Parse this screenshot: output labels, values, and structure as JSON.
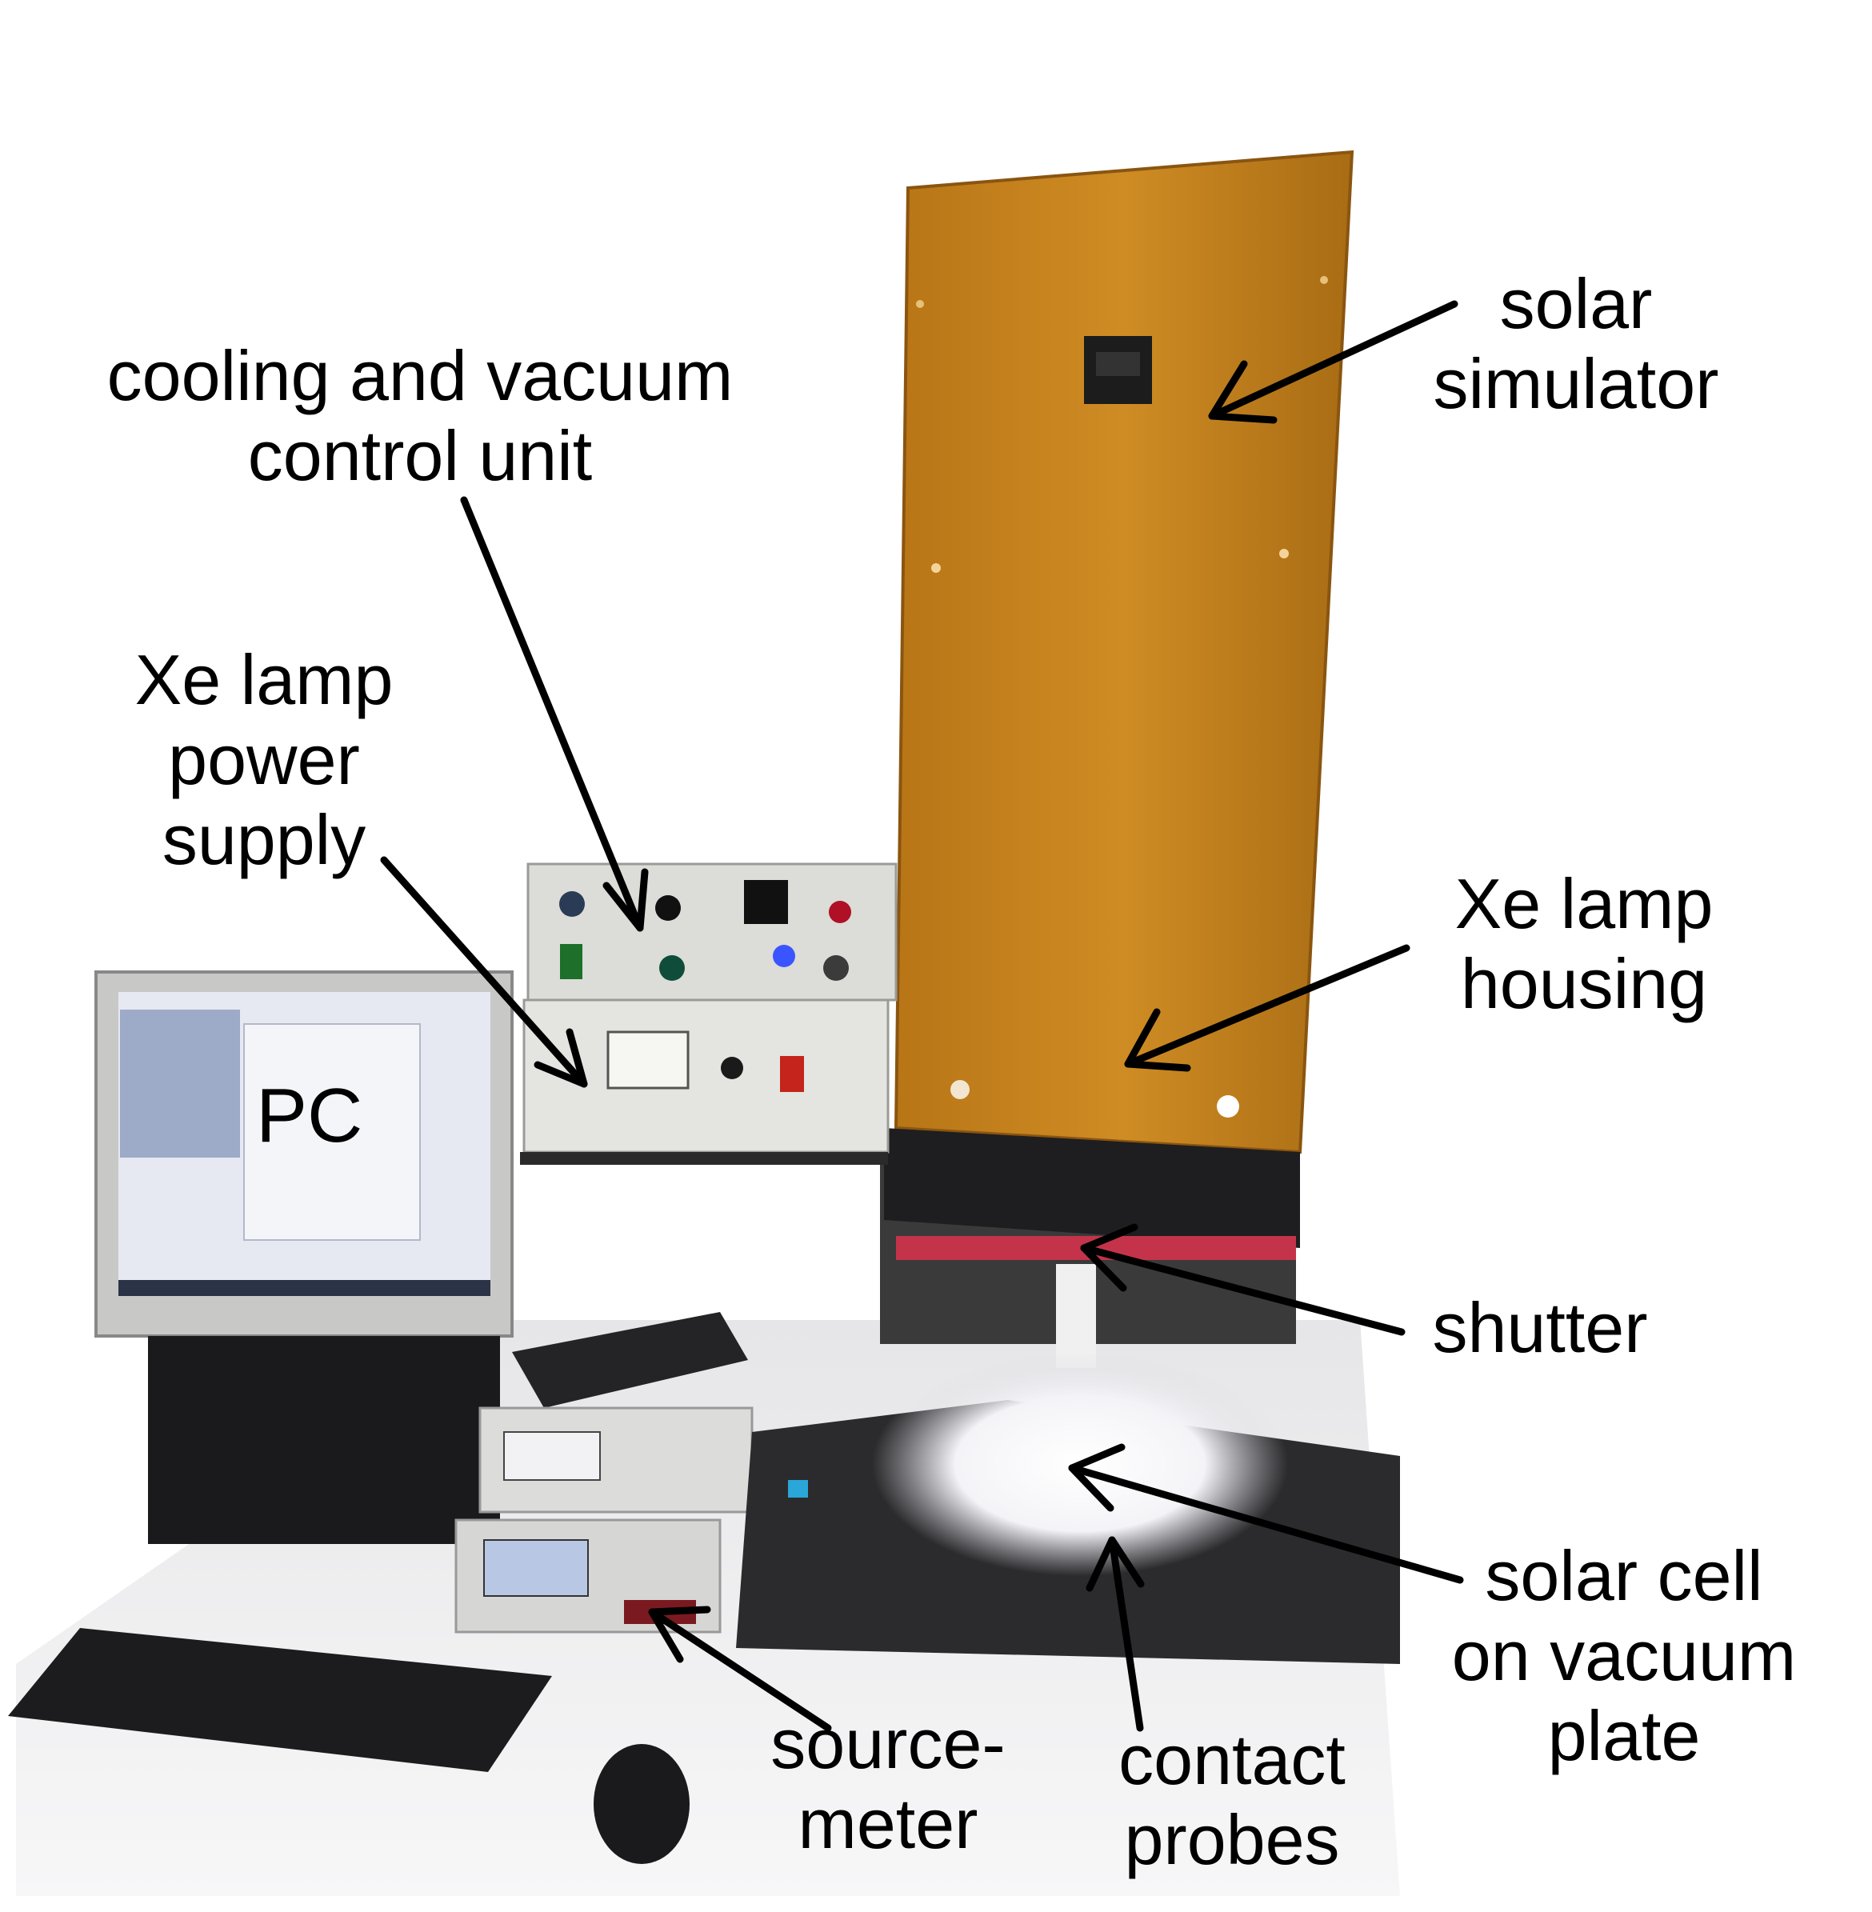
{
  "labels": {
    "solar_simulator": [
      "solar",
      "simulator"
    ],
    "cooling_unit": [
      "cooling and vacuum",
      "control unit"
    ],
    "xe_power_supply": [
      "Xe lamp",
      "power",
      "supply"
    ],
    "xe_lamp_housing": [
      "Xe lamp",
      "housing"
    ],
    "pc": "PC",
    "shutter": "shutter",
    "solar_cell": [
      "solar cell",
      "on vacuum",
      "plate"
    ],
    "sourcemeter": [
      "source-",
      "meter"
    ],
    "contact_probes": [
      "contact",
      "probes"
    ]
  },
  "colors": {
    "panel": "#c9861e",
    "panel_dark": "#9a6212",
    "arrow": "#000000",
    "device_gray": "#d8d8d6",
    "black_plate": "#2a2a2c"
  }
}
